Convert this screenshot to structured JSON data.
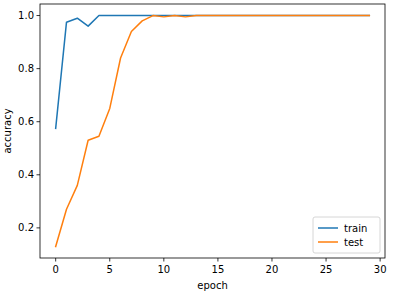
{
  "chart_data": {
    "type": "line",
    "xlabel": "epoch",
    "ylabel": "accuracy",
    "x": [
      0,
      1,
      2,
      3,
      4,
      5,
      6,
      7,
      8,
      9,
      10,
      11,
      12,
      13,
      14,
      15,
      16,
      17,
      18,
      19,
      20,
      21,
      22,
      23,
      24,
      25,
      26,
      27,
      28,
      29
    ],
    "series": [
      {
        "name": "train",
        "color": "#1f77b4",
        "values": [
          0.575,
          0.975,
          0.99,
          0.96,
          1.0,
          1.0,
          1.0,
          1.0,
          1.0,
          1.0,
          1.0,
          1.0,
          1.0,
          1.0,
          1.0,
          1.0,
          1.0,
          1.0,
          1.0,
          1.0,
          1.0,
          1.0,
          1.0,
          1.0,
          1.0,
          1.0,
          1.0,
          1.0,
          1.0,
          1.0
        ]
      },
      {
        "name": "test",
        "color": "#ff7f0e",
        "values": [
          0.13,
          0.27,
          0.36,
          0.53,
          0.545,
          0.65,
          0.84,
          0.94,
          0.98,
          1.0,
          0.995,
          1.0,
          0.995,
          1.0,
          1.0,
          1.0,
          1.0,
          1.0,
          1.0,
          1.0,
          1.0,
          1.0,
          1.0,
          1.0,
          1.0,
          1.0,
          1.0,
          1.0,
          1.0,
          1.0
        ]
      }
    ],
    "xlim": [
      -1.45,
      30.45
    ],
    "ylim": [
      0.0865,
      1.0435
    ],
    "xticks": [
      0,
      5,
      10,
      15,
      20,
      25,
      30
    ],
    "yticks": [
      0.2,
      0.4,
      0.6,
      0.8,
      {
        "value": 1.0,
        "label": "1.0"
      }
    ],
    "grid": false,
    "legend": "lower right"
  }
}
